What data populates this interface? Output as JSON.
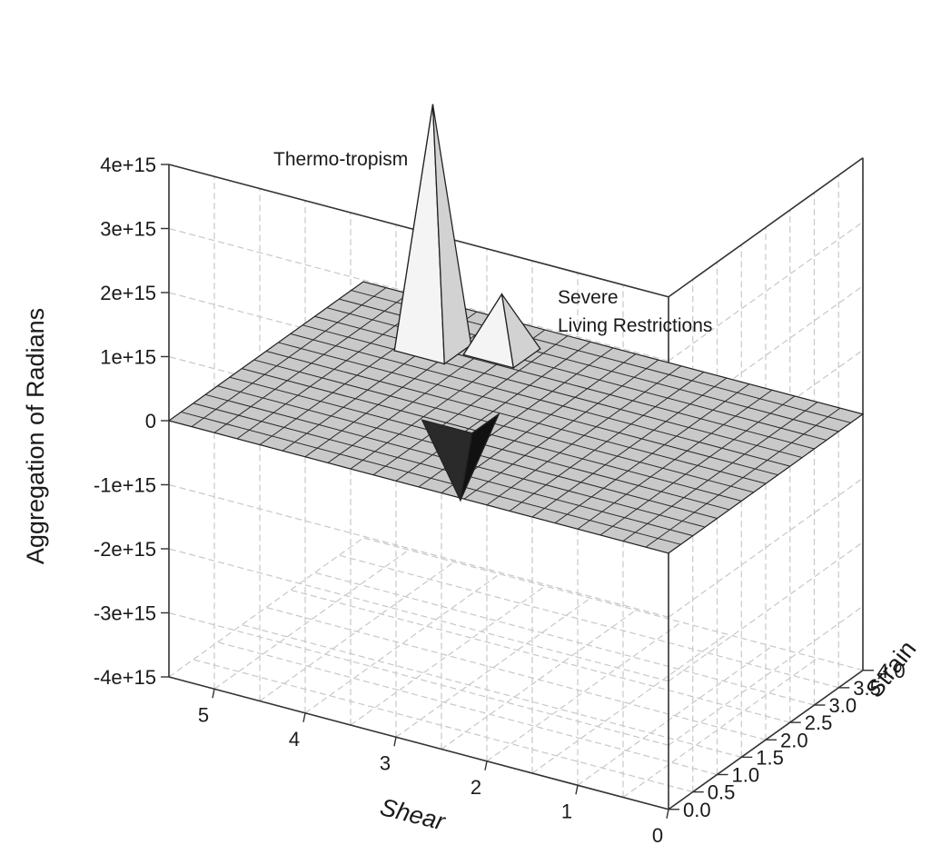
{
  "chart_data": {
    "type": "surface3d",
    "title": "",
    "zlabel": "Aggregation of Radians",
    "xlabel": "Shear",
    "ylabel": "Strain",
    "x_ticks": [
      "0",
      "1",
      "2",
      "3",
      "4",
      "5"
    ],
    "y_ticks": [
      "0.0",
      "0.5",
      "1.0",
      "1.5",
      "2.0",
      "2.5",
      "3.0",
      "3.5",
      "4.0"
    ],
    "z_ticks": [
      "-4e+15",
      "-3e+15",
      "-2e+15",
      "-1e+15",
      "0",
      "1e+15",
      "2e+15",
      "3e+15",
      "4e+15"
    ],
    "xlim": [
      0,
      5.5
    ],
    "ylim": [
      0,
      4
    ],
    "zlim": [
      -4000000000000000.0,
      4000000000000000.0
    ],
    "grid": true,
    "baseline": 0,
    "peaks": [
      {
        "label": "Thermo-tropism",
        "x": 4.2,
        "y": 3.0,
        "z": 3800000000000000.0
      },
      {
        "label": "Severe\nLiving Restrictions",
        "x": 3.6,
        "y": 3.3,
        "z": 900000000000000.0
      },
      {
        "label": "",
        "x": 3.2,
        "y": 1.7,
        "z": -1300000000000000.0
      }
    ],
    "annotations": [
      {
        "text": "Thermo-tropism",
        "x": 4.2,
        "y": 3.0,
        "z": 3800000000000000.0
      },
      {
        "text": "Severe",
        "x": 3.6,
        "y": 3.3,
        "z": 900000000000000.0
      },
      {
        "text": "Living Restrictions",
        "x": 3.6,
        "y": 3.3,
        "z": 900000000000000.0
      }
    ]
  }
}
